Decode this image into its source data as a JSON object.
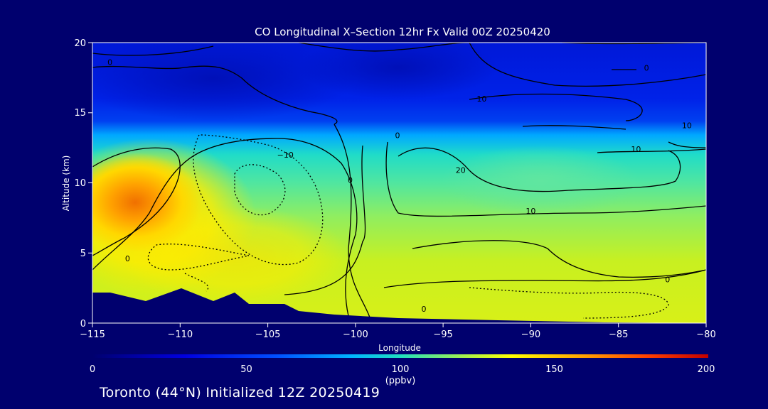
{
  "chart_data": {
    "type": "heatmap",
    "title": "CO Longitudinal X–Section 12hr  Fx Valid 00Z 20250420",
    "xlabel": "Longitude",
    "ylabel": "Altitude (km)",
    "xlim": [
      -115,
      -80
    ],
    "ylim": [
      0,
      20
    ],
    "xticks": [
      -115,
      -110,
      -105,
      -100,
      -95,
      -90,
      -85,
      -80
    ],
    "xtick_labels": [
      "−115",
      "−110",
      "−105",
      "−100",
      "−95",
      "−90",
      "−85",
      "−80"
    ],
    "yticks": [
      0,
      5,
      10,
      15,
      20
    ],
    "colorbar": {
      "range": [
        0,
        200
      ],
      "ticks": [
        0,
        50,
        100,
        150,
        200
      ],
      "unit": "(ppbv)",
      "colors": [
        "#00006e",
        "#0000c8",
        "#0050ff",
        "#00a0ff",
        "#00dcdc",
        "#50e6a0",
        "#a0f050",
        "#ffff00",
        "#ffa000",
        "#ff5000",
        "#c80000"
      ]
    },
    "terrain_km": [
      [
        -115,
        2.2
      ],
      [
        -114,
        2.3
      ],
      [
        -112,
        1.6
      ],
      [
        -110,
        2.6
      ],
      [
        -109,
        2.0
      ],
      [
        -108,
        1.5
      ],
      [
        -107,
        1.9
      ],
      [
        -106,
        1.4
      ],
      [
        -104,
        1.3
      ],
      [
        -103,
        1.5
      ],
      [
        -102,
        0.9
      ],
      [
        -100,
        0.6
      ],
      [
        -96,
        0.4
      ],
      [
        -90,
        0.2
      ],
      [
        -85,
        0.1
      ],
      [
        -80,
        0.0
      ]
    ],
    "contour_labels": [
      {
        "lon": -114,
        "alt": 18.4,
        "text": "0"
      },
      {
        "lon": -113,
        "alt": 4.4,
        "text": "0"
      },
      {
        "lon": -104.0,
        "alt": 11.8,
        "text": "−10"
      },
      {
        "lon": -100.3,
        "alt": 10.0,
        "text": "0"
      },
      {
        "lon": -97.6,
        "alt": 13.2,
        "text": "0"
      },
      {
        "lon": -96.1,
        "alt": 0.8,
        "text": "0"
      },
      {
        "lon": -94.0,
        "alt": 10.7,
        "text": "20"
      },
      {
        "lon": -92.8,
        "alt": 15.8,
        "text": "10"
      },
      {
        "lon": -90.0,
        "alt": 7.8,
        "text": "10"
      },
      {
        "lon": -84.0,
        "alt": 12.2,
        "text": "10"
      },
      {
        "lon": -83.4,
        "alt": 18.0,
        "text": "0"
      },
      {
        "lon": -81.1,
        "alt": 13.9,
        "text": "10"
      },
      {
        "lon": -82.2,
        "alt": 2.9,
        "text": "0"
      }
    ]
  },
  "footer": {
    "text": "Toronto (44°N) Initialized 12Z 20250419"
  }
}
